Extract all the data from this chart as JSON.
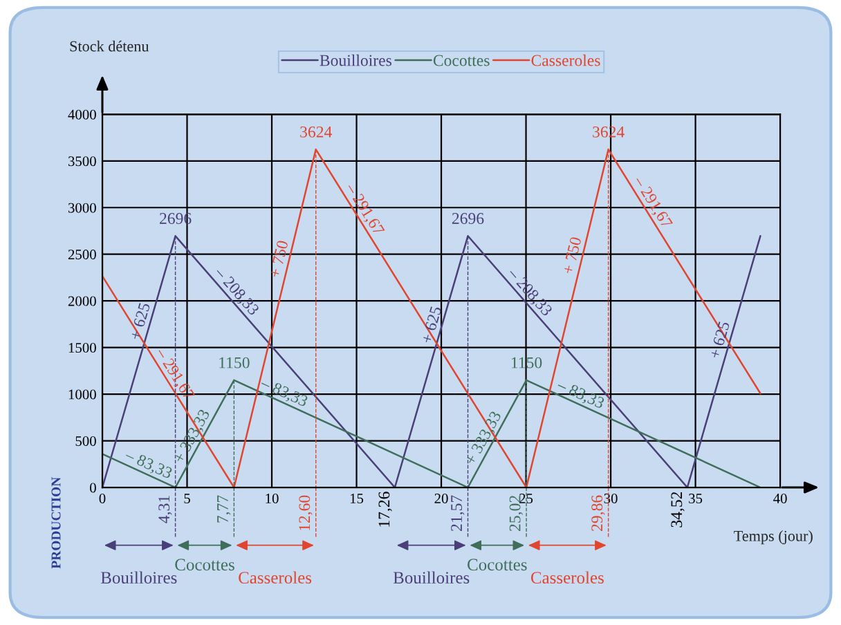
{
  "chart_data": {
    "type": "line",
    "xlabel": "Temps (jour)",
    "ylabel": "Stock détenu",
    "xlim": [
      0,
      40
    ],
    "ylim": [
      0,
      4000
    ],
    "xticks": [
      0,
      5,
      10,
      15,
      20,
      25,
      30,
      35,
      40
    ],
    "yticks": [
      0,
      500,
      1000,
      1500,
      2000,
      2500,
      3000,
      3500,
      4000
    ],
    "grid": true,
    "legend": "top",
    "series": [
      {
        "name": "Bouilloires",
        "color": "#4a3f78",
        "x": [
          0,
          4.31,
          17.26,
          21.57,
          34.52,
          38.83
        ],
        "values": [
          0,
          2696,
          0,
          2696,
          0,
          2696
        ]
      },
      {
        "name": "Cocottes",
        "color": "#3f6e5a",
        "x": [
          0,
          4.31,
          7.77,
          21.57,
          25.02,
          38.83
        ],
        "values": [
          359,
          0,
          1150,
          0,
          1150,
          0
        ]
      },
      {
        "name": "Casseroles",
        "color": "#e0462f",
        "x": [
          0,
          7.77,
          12.6,
          25.02,
          29.86,
          38.83
        ],
        "values": [
          2266,
          0,
          3624,
          0,
          3624,
          1008
        ]
      }
    ],
    "ref_lines": [
      {
        "axis": "x",
        "value": 4.31,
        "label": "4,31",
        "color": "#4a3f78",
        "line_style": "dashed"
      },
      {
        "axis": "x",
        "value": 7.77,
        "label": "7,77",
        "color": "#3f6e5a",
        "line_style": "dashed"
      },
      {
        "axis": "x",
        "value": 12.6,
        "label": "12,60",
        "color": "#e0462f",
        "line_style": "dashed"
      },
      {
        "axis": "x",
        "value": 21.57,
        "label": "21,57",
        "color": "#4a3f78",
        "line_style": "dashed"
      },
      {
        "axis": "x",
        "value": 25.02,
        "label": "25,02",
        "color": "#3f6e5a",
        "line_style": "dashed"
      },
      {
        "axis": "x",
        "value": 29.86,
        "label": "29,86",
        "color": "#e0462f",
        "line_style": "dashed"
      }
    ],
    "annotations": [
      "PRODUCTION",
      "Bouilloires",
      "Cocottes",
      "Casseroles",
      "Bouilloires",
      "Cocottes",
      "Casseroles",
      {
        "text": "2696",
        "x": 4.31,
        "y": 2696
      },
      {
        "text": "2696",
        "x": 21.57,
        "y": 2696
      },
      {
        "text": "1150",
        "x": 7.77,
        "y": 1150
      },
      {
        "text": "1150",
        "x": 25.02,
        "y": 1150
      },
      {
        "text": "3624",
        "x": 12.6,
        "y": 3624
      },
      {
        "text": "3624",
        "x": 29.86,
        "y": 3624
      },
      {
        "text": "17,26",
        "x": 17.26,
        "y": 0
      },
      {
        "text": "34,52",
        "x": 34.52,
        "y": 0
      },
      {
        "text": "+ 625",
        "x": 2.8,
        "y": 1750
      },
      {
        "text": "– 208,33",
        "x": 7.5,
        "y": 2031
      },
      {
        "text": "+ 625",
        "x": 20.0,
        "y": 1712
      },
      {
        "text": "– 208,33",
        "x": 24.8,
        "y": 2023
      },
      {
        "text": "+ 625",
        "x": 37.0,
        "y": 1550
      },
      {
        "text": "– 83,33",
        "x": 2.5,
        "y": 151
      },
      {
        "text": "+ 333,33",
        "x": 5.8,
        "y": 497
      },
      {
        "text": "– 83,33",
        "x": 10.5,
        "y": 922
      },
      {
        "text": "+ 333,33",
        "x": 23.0,
        "y": 477
      },
      {
        "text": "– 83,33",
        "x": 28.0,
        "y": 902
      },
      {
        "text": "– 291,67",
        "x": 3.8,
        "y": 1158
      },
      {
        "text": "+ 750",
        "x": 11.0,
        "y": 2422
      },
      {
        "text": "– 291,67",
        "x": 15.0,
        "y": 2924
      },
      {
        "text": "+ 750",
        "x": 28.3,
        "y": 2460
      },
      {
        "text": "– 291,67",
        "x": 32.0,
        "y": 2999
      }
    ]
  }
}
